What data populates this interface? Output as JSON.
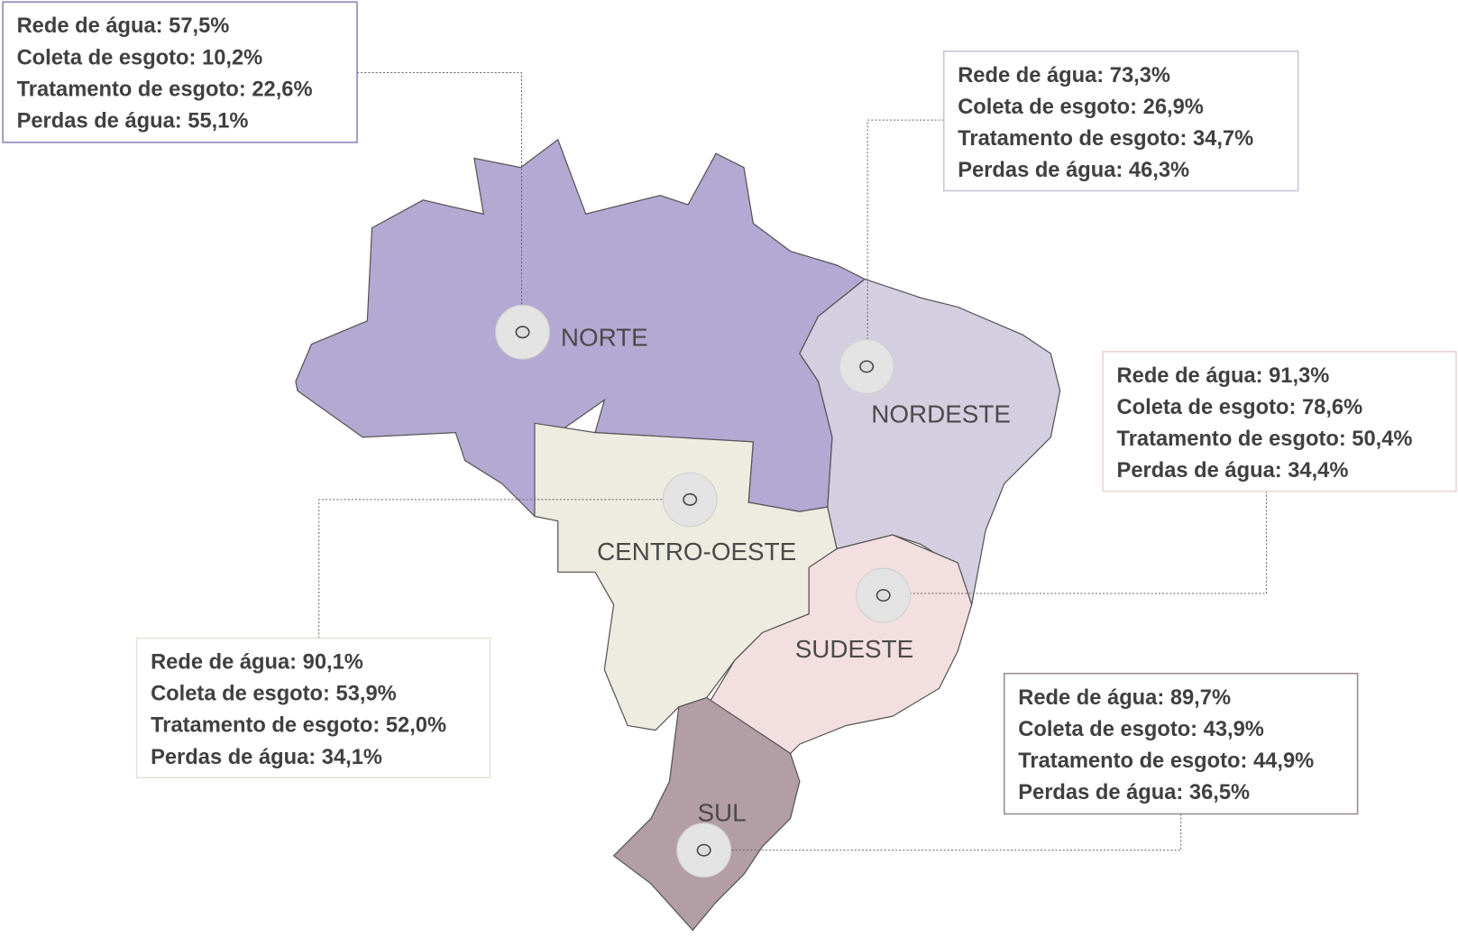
{
  "regions": [
    {
      "name": "NORTE",
      "stats": [
        "Rede de água: 57,5%",
        "Coleta de esgoto: 10,2%",
        "Tratamento de esgoto: 22,6%",
        "Perdas de água: 55,1%"
      ]
    },
    {
      "name": "NORDESTE",
      "stats": [
        "Rede de água: 73,3%",
        "Coleta de esgoto: 26,9%",
        "Tratamento de esgoto: 34,7%",
        "Perdas de água: 46,3%"
      ]
    },
    {
      "name": "SUDESTE",
      "stats": [
        "Rede de água: 91,3%",
        "Coleta de esgoto: 78,6%",
        "Tratamento de esgoto: 50,4%",
        "Perdas de água: 34,4%"
      ]
    },
    {
      "name": "CENTRO-OESTE",
      "stats": [
        "Rede de água: 90,1%",
        "Coleta de esgoto: 53,9%",
        "Tratamento de esgoto: 52,0%",
        "Perdas de água: 34,1%"
      ]
    },
    {
      "name": "SUL",
      "stats": [
        "Rede de água: 89,7%",
        "Coleta de esgoto: 43,9%",
        "Tratamento de esgoto: 44,9%",
        "Perdas de água: 36,5%"
      ]
    }
  ]
}
